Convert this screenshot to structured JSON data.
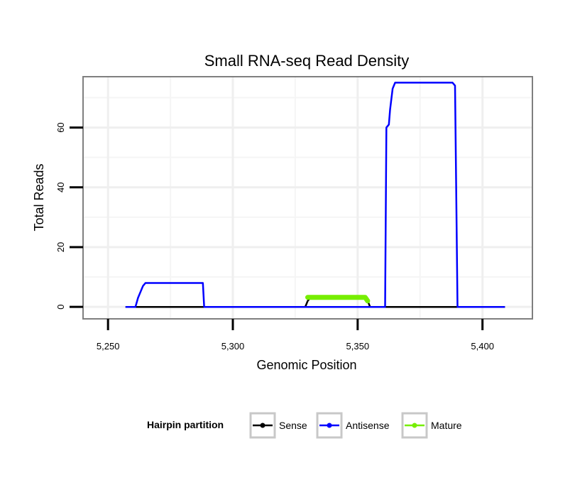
{
  "chart_data": {
    "type": "line",
    "title": "Small RNA-seq Read Density",
    "xlabel": "Genomic Position",
    "ylabel": "Total Reads",
    "xlim": [
      5240,
      5420
    ],
    "ylim": [
      -4,
      77
    ],
    "x_ticks": [
      5250,
      5300,
      5350,
      5400
    ],
    "x_tick_labels": [
      "5,250",
      "5,300",
      "5,350",
      "5,400"
    ],
    "y_ticks": [
      0,
      20,
      40,
      60
    ],
    "y_tick_labels": [
      "0",
      "20",
      "40",
      "60"
    ],
    "grid": true,
    "legend": {
      "title": "Hairpin partition",
      "position": "bottom",
      "entries": [
        {
          "name": "Sense",
          "color": "#000000"
        },
        {
          "name": "Antisense",
          "color": "#0000ff"
        },
        {
          "name": "Mature",
          "color": "#76ee00"
        }
      ]
    },
    "series": [
      {
        "name": "Sense",
        "color": "#000000",
        "width": 2.5,
        "x": [
          5257,
          5329,
          5330,
          5331,
          5353,
          5354,
          5355,
          5409
        ],
        "y": [
          0,
          0,
          2,
          3,
          3,
          2,
          0,
          0
        ]
      },
      {
        "name": "Antisense",
        "color": "#0000ff",
        "width": 2.5,
        "x": [
          5257,
          5261,
          5262,
          5264,
          5265,
          5288,
          5288.5,
          5361,
          5361.5,
          5362.5,
          5363,
          5364,
          5365,
          5366,
          5388,
          5389,
          5390,
          5409
        ],
        "y": [
          0,
          0,
          3,
          7,
          8,
          8,
          0,
          0,
          60,
          61,
          66,
          73,
          75,
          75,
          75,
          74,
          0,
          0
        ]
      },
      {
        "name": "Mature",
        "color": "#76ee00",
        "width": 7,
        "x": [
          5330,
          5353,
          5354
        ],
        "y": [
          3.2,
          3.2,
          2
        ]
      }
    ]
  }
}
